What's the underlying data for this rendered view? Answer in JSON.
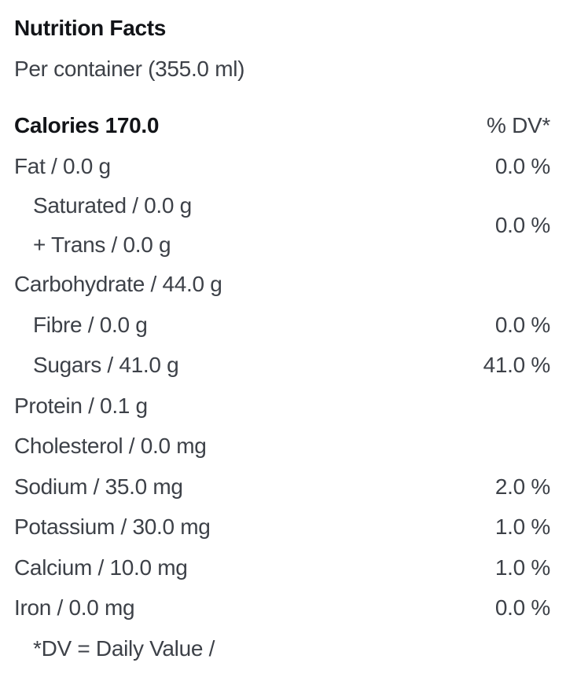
{
  "label": {
    "title": "Nutrition Facts",
    "serving": "Per container (355.0 ml)",
    "calories": "Calories 170.0",
    "dv_header": "% DV*",
    "footnote": "*DV = Daily Value /",
    "colors": {
      "background": "#ffffff",
      "heading_text": "#121418",
      "body_text": "#3d4148"
    },
    "rows": [
      {
        "type": "simple",
        "name": "fat",
        "label": "Fat / 0.0 g",
        "dv": "0.0 %",
        "indent": 0
      },
      {
        "type": "group",
        "name": "saturated-trans",
        "lines": [
          "Saturated / 0.0 g",
          "+ Trans / 0.0 g"
        ],
        "dv": "0.0 %",
        "indent": 1
      },
      {
        "type": "simple",
        "name": "carbohydrate",
        "label": "Carbohydrate / 44.0 g",
        "dv": "",
        "indent": 0
      },
      {
        "type": "simple",
        "name": "fibre",
        "label": "Fibre / 0.0 g",
        "dv": "0.0 %",
        "indent": 1
      },
      {
        "type": "simple",
        "name": "sugars",
        "label": "Sugars / 41.0 g",
        "dv": "41.0 %",
        "indent": 1
      },
      {
        "type": "simple",
        "name": "protein",
        "label": "Protein / 0.1 g",
        "dv": "",
        "indent": 0
      },
      {
        "type": "simple",
        "name": "cholesterol",
        "label": "Cholesterol / 0.0 mg",
        "dv": "",
        "indent": 0
      },
      {
        "type": "simple",
        "name": "sodium",
        "label": "Sodium / 35.0 mg",
        "dv": "2.0 %",
        "indent": 0
      },
      {
        "type": "simple",
        "name": "potassium",
        "label": "Potassium / 30.0 mg",
        "dv": "1.0 %",
        "indent": 0
      },
      {
        "type": "simple",
        "name": "calcium",
        "label": "Calcium / 10.0 mg",
        "dv": "1.0 %",
        "indent": 0
      },
      {
        "type": "simple",
        "name": "iron",
        "label": "Iron / 0.0 mg",
        "dv": "0.0 %",
        "indent": 0
      }
    ]
  }
}
